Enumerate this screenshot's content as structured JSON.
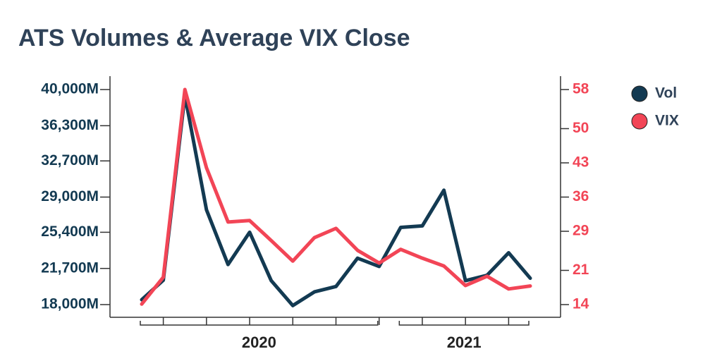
{
  "chart_data": {
    "type": "line",
    "title": "ATS Volumes & Average VIX Close",
    "categories": [
      "2020",
      null,
      null,
      null,
      null,
      null,
      null,
      null,
      null,
      null,
      null,
      null,
      "2021",
      null,
      null,
      null,
      null,
      null,
      null
    ],
    "series": [
      {
        "name": "Vol",
        "color": "#133a52",
        "values": [
          18500,
          20500,
          39400,
          27700,
          22100,
          25400,
          20450,
          17900,
          19300,
          19850,
          22750,
          21900,
          25900,
          26050,
          29700,
          20450,
          21000,
          23300,
          20700
        ]
      },
      {
        "name": "VIX",
        "color": "#f24556",
        "axis": "y2",
        "values": [
          14.1,
          19.6,
          58,
          42,
          30.9,
          31.2,
          27.1,
          22.9,
          27.7,
          29.6,
          25.1,
          22.5,
          25.3,
          23.5,
          21.9,
          17.9,
          19.8,
          17.2,
          17.8
        ]
      }
    ],
    "ylim": [
      18000,
      40000
    ],
    "yticks": [
      {
        "value": 18000,
        "label": "18,000M"
      },
      {
        "value": 21700,
        "label": "21,700M"
      },
      {
        "value": 25400,
        "label": "25,400M"
      },
      {
        "value": 29000,
        "label": "29,000M"
      },
      {
        "value": 32700,
        "label": "32,700M"
      },
      {
        "value": 36300,
        "label": "36,300M"
      },
      {
        "value": 40000,
        "label": "40,000M"
      }
    ],
    "y2lim": [
      14,
      58
    ],
    "y2ticks": [
      14,
      21,
      29,
      36,
      43,
      50,
      58
    ],
    "legend": "right"
  }
}
